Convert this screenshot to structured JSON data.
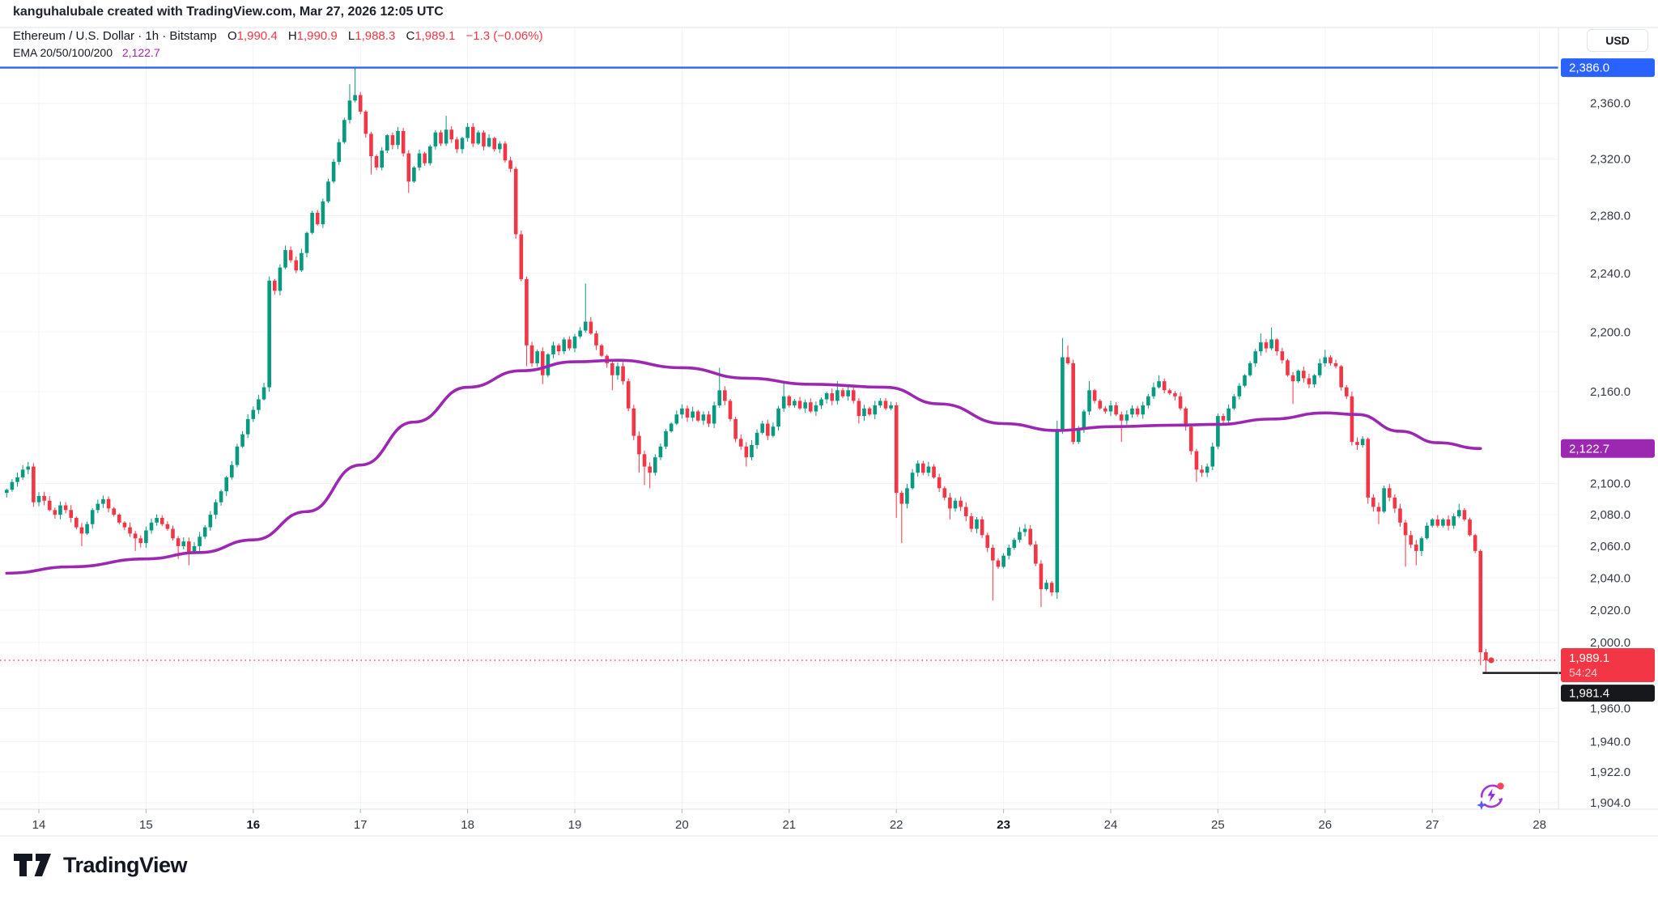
{
  "attribution": {
    "text": "kanguhalubale created with TradingView.com, Mar 27, 2026 12:05 UTC"
  },
  "legend": {
    "symbol": {
      "title": "Ethereum / U.S. Dollar",
      "meta": "· 1h · Bitstamp",
      "ohlc": [
        {
          "k": "O",
          "v": "1,990.4"
        },
        {
          "k": "H",
          "v": "1,990.9"
        },
        {
          "k": "L",
          "v": "1,988.3"
        },
        {
          "k": "C",
          "v": "1,989.1"
        }
      ],
      "change": "−1.3 (−0.06%)"
    },
    "indicator": {
      "name": "EMA 20/50/100/200",
      "value": "2,122.7"
    }
  },
  "axis": {
    "currency": "USD"
  },
  "footer": {
    "brand": "TradingView"
  },
  "colors": {
    "up": "#089981",
    "down": "#F23645",
    "ema": "#9C27B0",
    "level_blue": "#2962FF",
    "label_black": "#17181B",
    "grid": "#F0F3FA",
    "border": "#E0E3EB",
    "axis_text": "#363A45",
    "axis_text_bold": "#131722"
  },
  "chart_data": {
    "type": "candlestick",
    "title": "Ethereum / U.S. Dollar 1h Bitstamp",
    "scale": "log",
    "ylabel": "USD",
    "legend_position": "top-left",
    "grid": true,
    "price_ticks": [
      2360,
      2320,
      2280,
      2240,
      2200,
      2160,
      2100,
      2080,
      2060,
      2040,
      2020,
      2000,
      1960,
      1940,
      1922,
      1904
    ],
    "day_ticks": [
      {
        "day": 14,
        "label": "14",
        "bold": false
      },
      {
        "day": 15,
        "label": "15",
        "bold": false
      },
      {
        "day": 16,
        "label": "16",
        "bold": true
      },
      {
        "day": 17,
        "label": "17",
        "bold": false
      },
      {
        "day": 18,
        "label": "18",
        "bold": false
      },
      {
        "day": 19,
        "label": "19",
        "bold": false
      },
      {
        "day": 20,
        "label": "20",
        "bold": false
      },
      {
        "day": 21,
        "label": "21",
        "bold": false
      },
      {
        "day": 22,
        "label": "22",
        "bold": false
      },
      {
        "day": 23,
        "label": "23",
        "bold": true
      },
      {
        "day": 24,
        "label": "24",
        "bold": false
      },
      {
        "day": 25,
        "label": "25",
        "bold": false
      },
      {
        "day": 26,
        "label": "26",
        "bold": false
      },
      {
        "day": 27,
        "label": "27",
        "bold": false
      },
      {
        "day": 28,
        "label": "28",
        "bold": false
      }
    ],
    "levels": {
      "high_line": {
        "price": 2386.0,
        "label": "2,386.0"
      },
      "ema_label": {
        "price": 2122.7,
        "label": "2,122.7"
      },
      "last_price": {
        "price": 1989.1,
        "label": "1,989.1",
        "countdown": "54:24",
        "dot_day": 27.55
      },
      "low_line": {
        "price": 1981.4,
        "label": "1,981.4",
        "from_day": 27.47
      }
    },
    "ohlc_current": {
      "open": 1990.4,
      "high": 1990.9,
      "low": 1988.3,
      "close": 1989.1,
      "change": -1.3,
      "change_pct": -0.06
    },
    "ema_series": [
      [
        13.7,
        2043
      ],
      [
        14.3,
        2047
      ],
      [
        15.0,
        2052
      ],
      [
        15.5,
        2056
      ],
      [
        16.0,
        2064
      ],
      [
        16.5,
        2082
      ],
      [
        17.0,
        2112
      ],
      [
        17.5,
        2140
      ],
      [
        18.0,
        2163
      ],
      [
        18.5,
        2174
      ],
      [
        19.0,
        2180
      ],
      [
        19.4,
        2181
      ],
      [
        20.0,
        2176
      ],
      [
        20.6,
        2169
      ],
      [
        21.2,
        2165
      ],
      [
        21.9,
        2163
      ],
      [
        22.4,
        2152
      ],
      [
        23.0,
        2139
      ],
      [
        23.5,
        2134.5
      ],
      [
        24.0,
        2137
      ],
      [
        24.6,
        2138
      ],
      [
        25.0,
        2138.5
      ],
      [
        25.5,
        2142
      ],
      [
        26.0,
        2146
      ],
      [
        26.3,
        2145
      ],
      [
        26.7,
        2134
      ],
      [
        27.05,
        2126.5
      ],
      [
        27.45,
        2122.7
      ]
    ],
    "candles_format": "[day_time, close, low_override, high_override] — open is previous close",
    "candles": [
      [
        13.7,
        2096
      ],
      [
        13.75,
        2101
      ],
      [
        13.8,
        2104
      ],
      [
        13.85,
        2109
      ],
      [
        13.9,
        2111,
        null,
        2114
      ],
      [
        13.95,
        2088
      ],
      [
        14.0,
        2092
      ],
      [
        14.05,
        2089
      ],
      [
        14.1,
        2083
      ],
      [
        14.15,
        2080
      ],
      [
        14.2,
        2086
      ],
      [
        14.25,
        2083
      ],
      [
        14.3,
        2078
      ],
      [
        14.35,
        2072
      ],
      [
        14.4,
        2068,
        2060
      ],
      [
        14.45,
        2074
      ],
      [
        14.5,
        2083
      ],
      [
        14.55,
        2087
      ],
      [
        14.6,
        2090
      ],
      [
        14.65,
        2084
      ],
      [
        14.7,
        2080
      ],
      [
        14.75,
        2075
      ],
      [
        14.8,
        2072
      ],
      [
        14.85,
        2068
      ],
      [
        14.9,
        2065,
        2057
      ],
      [
        14.95,
        2062
      ],
      [
        15.0,
        2070
      ],
      [
        15.05,
        2075
      ],
      [
        15.1,
        2078
      ],
      [
        15.15,
        2074
      ],
      [
        15.2,
        2071
      ],
      [
        15.25,
        2065
      ],
      [
        15.3,
        2060,
        2052
      ],
      [
        15.35,
        2063
      ],
      [
        15.4,
        2056,
        2048
      ],
      [
        15.45,
        2060
      ],
      [
        15.5,
        2066
      ],
      [
        15.55,
        2072
      ],
      [
        15.6,
        2080
      ],
      [
        15.65,
        2088
      ],
      [
        15.7,
        2095
      ],
      [
        15.75,
        2104
      ],
      [
        15.8,
        2112
      ],
      [
        15.85,
        2124
      ],
      [
        15.9,
        2132
      ],
      [
        15.95,
        2142
      ],
      [
        16.0,
        2148
      ],
      [
        16.05,
        2155
      ],
      [
        16.1,
        2163
      ],
      [
        16.15,
        2235,
        2160
      ],
      [
        16.2,
        2228
      ],
      [
        16.25,
        2244
      ],
      [
        16.3,
        2256
      ],
      [
        16.35,
        2249
      ],
      [
        16.4,
        2242
      ],
      [
        16.45,
        2254
      ],
      [
        16.5,
        2268
      ],
      [
        16.55,
        2282
      ],
      [
        16.6,
        2274
      ],
      [
        16.65,
        2290
      ],
      [
        16.7,
        2304
      ],
      [
        16.75,
        2318
      ],
      [
        16.8,
        2332
      ],
      [
        16.85,
        2348
      ],
      [
        16.9,
        2362,
        null,
        2374
      ],
      [
        16.95,
        2366,
        null,
        2386
      ],
      [
        17.0,
        2354
      ],
      [
        17.05,
        2338
      ],
      [
        17.1,
        2322,
        2309
      ],
      [
        17.15,
        2314
      ],
      [
        17.2,
        2326
      ],
      [
        17.25,
        2337
      ],
      [
        17.3,
        2330
      ],
      [
        17.35,
        2340
      ],
      [
        17.4,
        2324
      ],
      [
        17.45,
        2304,
        2296
      ],
      [
        17.5,
        2314
      ],
      [
        17.55,
        2324
      ],
      [
        17.6,
        2317
      ],
      [
        17.65,
        2329
      ],
      [
        17.7,
        2339
      ],
      [
        17.75,
        2331
      ],
      [
        17.8,
        2341,
        null,
        2351
      ],
      [
        17.85,
        2334
      ],
      [
        17.9,
        2327
      ],
      [
        17.95,
        2335
      ],
      [
        18.0,
        2343
      ],
      [
        18.05,
        2331
      ],
      [
        18.1,
        2339
      ],
      [
        18.15,
        2329
      ],
      [
        18.2,
        2335
      ],
      [
        18.25,
        2327
      ],
      [
        18.3,
        2331
      ],
      [
        18.35,
        2319
      ],
      [
        18.4,
        2313
      ],
      [
        18.45,
        2267
      ],
      [
        18.5,
        2236
      ],
      [
        18.55,
        2191,
        2177
      ],
      [
        18.6,
        2179
      ],
      [
        18.65,
        2187
      ],
      [
        18.7,
        2171,
        2165
      ],
      [
        18.75,
        2185
      ],
      [
        18.8,
        2191
      ],
      [
        18.85,
        2187
      ],
      [
        18.9,
        2195
      ],
      [
        18.95,
        2189
      ],
      [
        19.0,
        2197
      ],
      [
        19.05,
        2201
      ],
      [
        19.1,
        2207,
        null,
        2233
      ],
      [
        19.15,
        2199
      ],
      [
        19.2,
        2191
      ],
      [
        19.25,
        2184
      ],
      [
        19.3,
        2179
      ],
      [
        19.35,
        2171,
        2161
      ],
      [
        19.4,
        2177
      ],
      [
        19.45,
        2167
      ],
      [
        19.5,
        2149
      ],
      [
        19.55,
        2131
      ],
      [
        19.6,
        2119,
        2107
      ],
      [
        19.65,
        2111,
        2099
      ],
      [
        19.7,
        2107,
        2097
      ],
      [
        19.75,
        2117
      ],
      [
        19.8,
        2124
      ],
      [
        19.85,
        2134
      ],
      [
        19.9,
        2139
      ],
      [
        19.95,
        2145
      ],
      [
        20.0,
        2149
      ],
      [
        20.05,
        2143
      ],
      [
        20.1,
        2147
      ],
      [
        20.15,
        2141
      ],
      [
        20.2,
        2145
      ],
      [
        20.25,
        2139
      ],
      [
        20.3,
        2151
      ],
      [
        20.35,
        2161,
        null,
        2176
      ],
      [
        20.4,
        2154
      ],
      [
        20.45,
        2142
      ],
      [
        20.5,
        2129
      ],
      [
        20.55,
        2124
      ],
      [
        20.6,
        2117,
        2111
      ],
      [
        20.65,
        2125
      ],
      [
        20.7,
        2133
      ],
      [
        20.75,
        2139
      ],
      [
        20.8,
        2131
      ],
      [
        20.85,
        2137
      ],
      [
        20.9,
        2149
      ],
      [
        20.95,
        2157,
        null,
        2166
      ],
      [
        21.0,
        2151
      ],
      [
        21.05,
        2154
      ],
      [
        21.1,
        2149
      ],
      [
        21.15,
        2153
      ],
      [
        21.2,
        2147
      ],
      [
        21.25,
        2151
      ],
      [
        21.3,
        2155
      ],
      [
        21.35,
        2159
      ],
      [
        21.4,
        2154
      ],
      [
        21.45,
        2161,
        null,
        2167
      ],
      [
        21.5,
        2157
      ],
      [
        21.55,
        2161
      ],
      [
        21.6,
        2154
      ],
      [
        21.65,
        2144,
        2139
      ],
      [
        21.7,
        2149
      ],
      [
        21.75,
        2145
      ],
      [
        21.8,
        2151
      ],
      [
        21.85,
        2154
      ],
      [
        21.9,
        2149
      ],
      [
        21.95,
        2151
      ],
      [
        22.0,
        2094,
        2078
      ],
      [
        22.05,
        2087,
        2062
      ],
      [
        22.1,
        2097
      ],
      [
        22.15,
        2107
      ],
      [
        22.2,
        2113
      ],
      [
        22.25,
        2107
      ],
      [
        22.3,
        2111
      ],
      [
        22.35,
        2104
      ],
      [
        22.4,
        2097
      ],
      [
        22.45,
        2091
      ],
      [
        22.5,
        2084,
        2077
      ],
      [
        22.55,
        2089
      ],
      [
        22.6,
        2085
      ],
      [
        22.65,
        2079
      ],
      [
        22.7,
        2071
      ],
      [
        22.75,
        2077
      ],
      [
        22.8,
        2067
      ],
      [
        22.85,
        2059
      ],
      [
        22.9,
        2051,
        2026
      ],
      [
        22.95,
        2047
      ],
      [
        23.0,
        2054
      ],
      [
        23.05,
        2059
      ],
      [
        23.1,
        2064
      ],
      [
        23.15,
        2069
      ],
      [
        23.2,
        2071
      ],
      [
        23.25,
        2061
      ],
      [
        23.3,
        2049
      ],
      [
        23.35,
        2033,
        2022
      ],
      [
        23.4,
        2037
      ],
      [
        23.45,
        2031
      ],
      [
        23.5,
        2134,
        2027,
        2141
      ],
      [
        23.55,
        2183,
        null,
        2196
      ],
      [
        23.6,
        2179,
        null,
        2191
      ],
      [
        23.65,
        2127
      ],
      [
        23.7,
        2135
      ],
      [
        23.75,
        2147
      ],
      [
        23.8,
        2161,
        null,
        2167
      ],
      [
        23.85,
        2154
      ],
      [
        23.9,
        2149
      ],
      [
        23.95,
        2147
      ],
      [
        24.0,
        2151
      ],
      [
        24.05,
        2145
      ],
      [
        24.1,
        2141,
        2127
      ],
      [
        24.15,
        2145
      ],
      [
        24.2,
        2149
      ],
      [
        24.25,
        2145
      ],
      [
        24.3,
        2151
      ],
      [
        24.35,
        2157
      ],
      [
        24.4,
        2163
      ],
      [
        24.45,
        2167,
        null,
        2171
      ],
      [
        24.5,
        2161
      ],
      [
        24.55,
        2159
      ],
      [
        24.6,
        2157
      ],
      [
        24.65,
        2149
      ],
      [
        24.7,
        2137
      ],
      [
        24.75,
        2121
      ],
      [
        24.8,
        2109,
        2101
      ],
      [
        24.85,
        2107
      ],
      [
        24.9,
        2111
      ],
      [
        24.95,
        2124
      ],
      [
        25.0,
        2144
      ],
      [
        25.05,
        2141
      ],
      [
        25.1,
        2149
      ],
      [
        25.15,
        2157
      ],
      [
        25.2,
        2164
      ],
      [
        25.25,
        2171
      ],
      [
        25.3,
        2179
      ],
      [
        25.35,
        2187
      ],
      [
        25.4,
        2193,
        null,
        2199
      ],
      [
        25.45,
        2189
      ],
      [
        25.5,
        2195,
        null,
        2203
      ],
      [
        25.55,
        2187
      ],
      [
        25.6,
        2181
      ],
      [
        25.65,
        2171
      ],
      [
        25.7,
        2167,
        2152
      ],
      [
        25.75,
        2174
      ],
      [
        25.8,
        2169
      ],
      [
        25.85,
        2165
      ],
      [
        25.9,
        2171
      ],
      [
        25.95,
        2179
      ],
      [
        26.0,
        2183,
        null,
        2188
      ],
      [
        26.05,
        2179
      ],
      [
        26.1,
        2177
      ],
      [
        26.15,
        2163
      ],
      [
        26.2,
        2157
      ],
      [
        26.25,
        2127
      ],
      [
        26.3,
        2125
      ],
      [
        26.35,
        2129
      ],
      [
        26.4,
        2091,
        2087
      ],
      [
        26.45,
        2085
      ],
      [
        26.5,
        2082,
        2074
      ],
      [
        26.55,
        2097
      ],
      [
        26.6,
        2091
      ],
      [
        26.65,
        2084
      ],
      [
        26.7,
        2075
      ],
      [
        26.75,
        2067,
        2047
      ],
      [
        26.8,
        2061
      ],
      [
        26.85,
        2057,
        2048
      ],
      [
        26.9,
        2065
      ],
      [
        26.95,
        2073
      ],
      [
        27.0,
        2077
      ],
      [
        27.05,
        2073
      ],
      [
        27.1,
        2077
      ],
      [
        27.15,
        2073
      ],
      [
        27.2,
        2079
      ],
      [
        27.25,
        2083,
        null,
        2087
      ],
      [
        27.3,
        2077
      ],
      [
        27.35,
        2067
      ],
      [
        27.4,
        2057
      ],
      [
        27.45,
        1994,
        1986
      ],
      [
        27.5,
        1989.1,
        1981.4
      ]
    ]
  }
}
